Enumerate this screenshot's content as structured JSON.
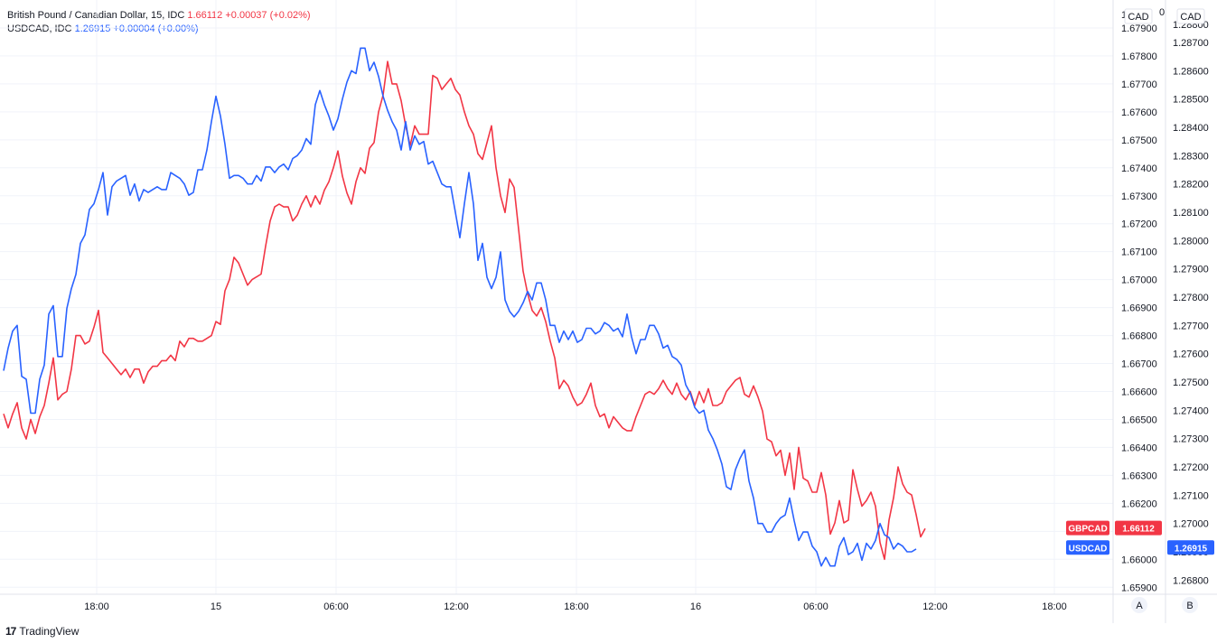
{
  "legend": {
    "gbpcad": {
      "name": "British Pound / Canadian Dollar, 15, IDC",
      "price": "1.66112",
      "change": "+0.00037 (+0.02%)"
    },
    "usdcad": {
      "name": "USDCAD, IDC",
      "price": "1.26915",
      "change": "+0.00004 (+0.00%)"
    }
  },
  "scale_left_label": "CAD",
  "scale_right_label": "CAD",
  "scale_left_buttons": "A",
  "scale_right_buttons": "B",
  "top_partial_left": "1",
  "top_partial_right": "0",
  "top_partial_right2": "1.28800",
  "price_tags": {
    "gbpcad": {
      "label": "GBPCAD",
      "value": "1.66112",
      "color": "#f23645"
    },
    "usdcad": {
      "label": "USDCAD",
      "value": "1.26915",
      "color": "#2962ff"
    }
  },
  "footer": {
    "brand": "TradingView",
    "logo": "17"
  },
  "chart_data": {
    "type": "line",
    "x_ticks": [
      "18:00",
      "15",
      "06:00",
      "12:00",
      "18:00",
      "16",
      "06:00",
      "12:00",
      "18:00"
    ],
    "left_axis": {
      "ticks": [
        "1.67900",
        "1.67800",
        "1.67700",
        "1.67600",
        "1.67500",
        "1.67400",
        "1.67300",
        "1.67200",
        "1.67100",
        "1.67000",
        "1.66900",
        "1.66800",
        "1.66700",
        "1.66600",
        "1.66500",
        "1.66400",
        "1.66300",
        "1.66200",
        "1.66100",
        "1.66000",
        "1.65900"
      ],
      "range": [
        1.65875,
        1.68
      ]
    },
    "right_axis": {
      "ticks": [
        "1.28700",
        "1.28600",
        "1.28500",
        "1.28400",
        "1.28300",
        "1.28200",
        "1.28100",
        "1.28000",
        "1.27900",
        "1.27800",
        "1.27700",
        "1.27600",
        "1.27500",
        "1.27400",
        "1.27300",
        "1.27200",
        "1.27100",
        "1.27000",
        "1.26900",
        "1.26800"
      ],
      "range": [
        1.2675,
        1.2885
      ]
    },
    "series": [
      {
        "name": "GBPCAD",
        "color": "#f23645",
        "axis": "left",
        "values": [
          1.6652,
          1.6647,
          1.6652,
          1.6656,
          1.6647,
          1.6643,
          1.665,
          1.6645,
          1.6651,
          1.6655,
          1.6663,
          1.6672,
          1.6657,
          1.6659,
          1.666,
          1.6668,
          1.668,
          1.668,
          1.6677,
          1.6678,
          1.6683,
          1.6689,
          1.6674,
          1.6672,
          1.667,
          1.6668,
          1.6666,
          1.6668,
          1.6665,
          1.6668,
          1.6668,
          1.6663,
          1.6667,
          1.6669,
          1.6669,
          1.6671,
          1.6671,
          1.6673,
          1.6671,
          1.6678,
          1.6676,
          1.6679,
          1.6679,
          1.6678,
          1.6678,
          1.6679,
          1.668,
          1.6685,
          1.6684,
          1.6696,
          1.67,
          1.6708,
          1.6706,
          1.6702,
          1.6698,
          1.67,
          1.6701,
          1.6702,
          1.6712,
          1.6721,
          1.6726,
          1.6727,
          1.6726,
          1.6726,
          1.6721,
          1.6723,
          1.6727,
          1.673,
          1.6726,
          1.673,
          1.6727,
          1.6732,
          1.6735,
          1.674,
          1.6746,
          1.6737,
          1.6731,
          1.6727,
          1.6735,
          1.674,
          1.6738,
          1.6747,
          1.6749,
          1.676,
          1.6766,
          1.6778,
          1.677,
          1.677,
          1.6764,
          1.6755,
          1.6748,
          1.6755,
          1.6752,
          1.6752,
          1.6752,
          1.6773,
          1.6772,
          1.6768,
          1.677,
          1.6772,
          1.6768,
          1.6766,
          1.676,
          1.6755,
          1.6752,
          1.6745,
          1.6743,
          1.6749,
          1.6755,
          1.674,
          1.673,
          1.6724,
          1.6736,
          1.6733,
          1.6718,
          1.6703,
          1.6695,
          1.6689,
          1.6687,
          1.669,
          1.6685,
          1.6678,
          1.6672,
          1.6661,
          1.6664,
          1.6662,
          1.6658,
          1.6655,
          1.6656,
          1.6659,
          1.6663,
          1.6655,
          1.6651,
          1.6652,
          1.6647,
          1.6651,
          1.6649,
          1.6647,
          1.6646,
          1.6646,
          1.6651,
          1.6655,
          1.6659,
          1.666,
          1.6659,
          1.6661,
          1.6664,
          1.6661,
          1.6659,
          1.6663,
          1.6659,
          1.6657,
          1.666,
          1.6655,
          1.666,
          1.6656,
          1.6661,
          1.6655,
          1.6655,
          1.6656,
          1.666,
          1.6662,
          1.6664,
          1.6665,
          1.6659,
          1.6658,
          1.6662,
          1.6658,
          1.6653,
          1.6643,
          1.6642,
          1.6637,
          1.6639,
          1.663,
          1.6638,
          1.6625,
          1.664,
          1.6629,
          1.6628,
          1.6624,
          1.6624,
          1.6631,
          1.6623,
          1.6609,
          1.6613,
          1.6621,
          1.6613,
          1.6614,
          1.6632,
          1.6625,
          1.6619,
          1.6621,
          1.6624,
          1.6619,
          1.6606,
          1.66,
          1.6614,
          1.6622,
          1.6633,
          1.6627,
          1.6624,
          1.6623,
          1.6616,
          1.6608,
          1.6611
        ]
      },
      {
        "name": "USDCAD",
        "color": "#2962ff",
        "axis": "right",
        "values": [
          1.2754,
          1.2762,
          1.2768,
          1.277,
          1.2752,
          1.2751,
          1.2739,
          1.2739,
          1.2751,
          1.2756,
          1.2774,
          1.2777,
          1.2759,
          1.2759,
          1.2776,
          1.2783,
          1.2788,
          1.2799,
          1.2802,
          1.2811,
          1.2813,
          1.2818,
          1.2824,
          1.2809,
          1.2819,
          1.2821,
          1.2822,
          1.2823,
          1.2816,
          1.282,
          1.2814,
          1.2818,
          1.2817,
          1.2818,
          1.2819,
          1.2818,
          1.2818,
          1.2824,
          1.2823,
          1.2822,
          1.282,
          1.2816,
          1.2817,
          1.2825,
          1.2825,
          1.2832,
          1.2842,
          1.2851,
          1.2844,
          1.2834,
          1.2822,
          1.2823,
          1.2823,
          1.2822,
          1.282,
          1.282,
          1.2823,
          1.2821,
          1.2826,
          1.2826,
          1.2824,
          1.2826,
          1.2827,
          1.2825,
          1.2829,
          1.283,
          1.2832,
          1.2836,
          1.2834,
          1.2848,
          1.2853,
          1.2848,
          1.2844,
          1.2839,
          1.2843,
          1.285,
          1.2856,
          1.286,
          1.2859,
          1.2868,
          1.2868,
          1.286,
          1.2863,
          1.2858,
          1.2851,
          1.2846,
          1.2842,
          1.2839,
          1.2832,
          1.2842,
          1.2832,
          1.2837,
          1.2834,
          1.2835,
          1.2827,
          1.2828,
          1.2824,
          1.282,
          1.2819,
          1.2819,
          1.281,
          1.2801,
          1.2813,
          1.2824,
          1.2813,
          1.2793,
          1.2799,
          1.2787,
          1.2783,
          1.2787,
          1.2796,
          1.2779,
          1.2775,
          1.2773,
          1.2775,
          1.2778,
          1.2782,
          1.2779,
          1.2785,
          1.2785,
          1.2779,
          1.277,
          1.277,
          1.2764,
          1.2768,
          1.2765,
          1.2768,
          1.2764,
          1.2765,
          1.2769,
          1.2769,
          1.2767,
          1.2768,
          1.2771,
          1.277,
          1.2768,
          1.2769,
          1.2766,
          1.2774,
          1.2766,
          1.276,
          1.2765,
          1.2765,
          1.277,
          1.277,
          1.2767,
          1.2762,
          1.2763,
          1.2759,
          1.2758,
          1.2756,
          1.2749,
          1.2746,
          1.2741,
          1.2739,
          1.274,
          1.2733,
          1.273,
          1.2726,
          1.2721,
          1.2713,
          1.2712,
          1.2719,
          1.2723,
          1.2726,
          1.2715,
          1.2709,
          1.27,
          1.27,
          1.2697,
          1.2697,
          1.27,
          1.2702,
          1.2703,
          1.2709,
          1.2701,
          1.2694,
          1.2697,
          1.2697,
          1.2692,
          1.269,
          1.2685,
          1.2688,
          1.2685,
          1.2685,
          1.2692,
          1.2695,
          1.2689,
          1.269,
          1.2693,
          1.2687,
          1.2693,
          1.2691,
          1.2694,
          1.27,
          1.2696,
          1.2695,
          1.2691,
          1.2693,
          1.2692,
          1.269,
          1.269,
          1.2691
        ]
      }
    ]
  }
}
